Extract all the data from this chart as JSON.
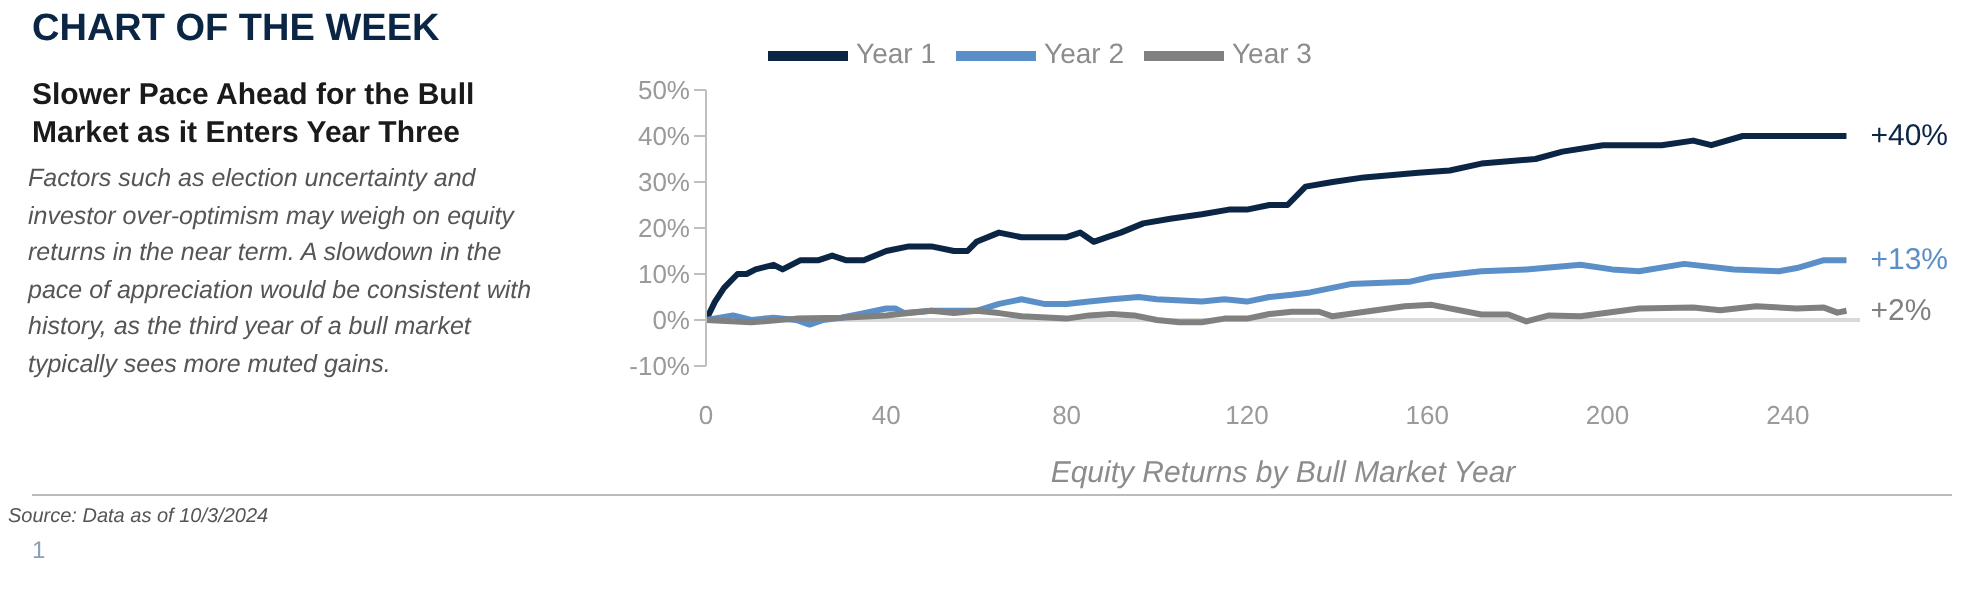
{
  "chart_data": {
    "type": "line",
    "title": "CHART OF THE WEEK",
    "subtitle": "Slower Pace Ahead for the Bull Market as it Enters Year Three",
    "xlabel": "Equity Returns by Bull Market Year",
    "annotations": [
      "Factors such as election uncertainty and investor over-optimism may weigh on equity returns in the near term. A slowdown in the pace of appreciation would be consistent with history, as the third year of a bull market typically sees more muted gains.",
      "Source: Data as of 10/3/2024",
      "1",
      "+40%",
      "+13%",
      "+2%"
    ],
    "series": [
      {
        "name": "Year 1",
        "color": "#0b2545",
        "x": [
          0,
          2,
          4,
          7,
          9,
          11,
          15,
          17,
          21,
          25,
          28,
          31,
          35,
          40,
          45,
          50,
          55,
          58,
          60,
          65,
          70,
          75,
          80,
          83,
          86,
          89,
          92,
          97,
          103,
          110,
          116,
          120,
          125,
          129,
          133,
          139,
          146,
          158,
          165,
          172,
          184,
          190,
          199,
          212,
          219,
          223,
          230,
          238,
          245,
          253
        ],
        "values": [
          0,
          4,
          7,
          10,
          10,
          11,
          12,
          11,
          13,
          13,
          14,
          13,
          13,
          15,
          16,
          16,
          15,
          15,
          17,
          19,
          18,
          18,
          18,
          19,
          17,
          18,
          19,
          21,
          22,
          23,
          24,
          24,
          25,
          25,
          29,
          30,
          31,
          32,
          32.5,
          34,
          35,
          36.6,
          38,
          38,
          39,
          38,
          40,
          40,
          40,
          40
        ]
      },
      {
        "name": "Year 2",
        "color": "#5b8fc7",
        "x": [
          0,
          6,
          10,
          15,
          20,
          23,
          26,
          30,
          35,
          40,
          42,
          44,
          50,
          60,
          65,
          70,
          75,
          80,
          85,
          90,
          96,
          100,
          110,
          115,
          120,
          125,
          130,
          134,
          143,
          156,
          161,
          172,
          182,
          194,
          201,
          207,
          217,
          228,
          238,
          242,
          248,
          253
        ],
        "values": [
          0,
          1,
          0,
          0.5,
          0,
          -1,
          0,
          0.5,
          1.5,
          2.5,
          2.5,
          1.5,
          2,
          2,
          3.5,
          4.5,
          3.5,
          3.5,
          4,
          4.5,
          5,
          4.5,
          4,
          4.5,
          4,
          5,
          5.5,
          6,
          7.8,
          8.3,
          9.4,
          10.6,
          11,
          12,
          11,
          10.6,
          12.2,
          11,
          10.6,
          11.3,
          13,
          13
        ]
      },
      {
        "name": "Year 3",
        "color": "#808080",
        "x": [
          0,
          10,
          20,
          30,
          40,
          45,
          50,
          55,
          60,
          65,
          70,
          80,
          85,
          90,
          95,
          100,
          105,
          110,
          115,
          120,
          125,
          130,
          136,
          139,
          155,
          161,
          172,
          178,
          182,
          187,
          194,
          207,
          219,
          225,
          233,
          242,
          248,
          251,
          253
        ],
        "values": [
          0,
          -0.5,
          0.3,
          0.5,
          1,
          1.5,
          2,
          1.5,
          2,
          1.5,
          0.8,
          0.3,
          1,
          1.3,
          1,
          0,
          -0.5,
          -0.5,
          0.3,
          0.3,
          1.3,
          1.8,
          1.8,
          0.8,
          3,
          3.3,
          1.2,
          1.2,
          -0.3,
          1,
          0.8,
          2.5,
          2.7,
          2.1,
          3,
          2.5,
          2.7,
          1.6,
          2
        ]
      }
    ],
    "xlim": [
      0,
      256
    ],
    "xticks": [
      0,
      40,
      80,
      120,
      160,
      200,
      240
    ],
    "ylim": [
      -10,
      50
    ],
    "yticks": [
      {
        "value": -10,
        "label": "-10%"
      },
      {
        "value": 0,
        "label": "0%"
      },
      {
        "value": 10,
        "label": "10%"
      },
      {
        "value": 20,
        "label": "20%"
      },
      {
        "value": 30,
        "label": "30%"
      },
      {
        "value": 40,
        "label": "40%"
      },
      {
        "value": 50,
        "label": "50%"
      }
    ],
    "ref_lines": [
      {
        "axis": "y",
        "value": 0,
        "color": "#d9d9d9"
      }
    ],
    "grid": false,
    "legend": "top",
    "marker": "none",
    "line_style": "solid"
  }
}
